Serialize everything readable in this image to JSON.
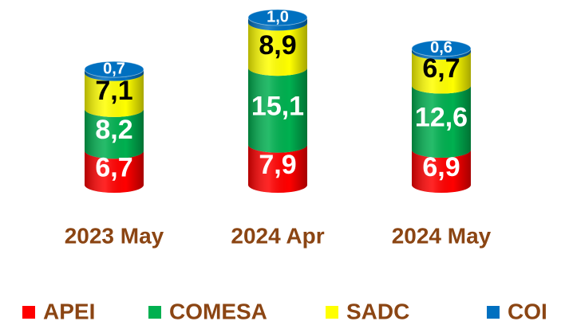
{
  "chart_data": {
    "type": "stacked_cylinder",
    "categories": [
      "2023 May",
      "2024 Apr",
      "2024 May"
    ],
    "series": [
      {
        "name": "APEI",
        "color": "#ff0000",
        "values": [
          6.7,
          7.9,
          6.9
        ],
        "value_labels": [
          "6,7",
          "7,9",
          "6,9"
        ]
      },
      {
        "name": "COMESA",
        "color": "#00b050",
        "values": [
          8.2,
          15.1,
          12.6
        ],
        "value_labels": [
          "8,2",
          "15,1",
          "12,6"
        ]
      },
      {
        "name": "SADC",
        "color": "#ffff00",
        "values": [
          7.1,
          8.9,
          6.7
        ],
        "value_labels": [
          "7,1",
          "8,9",
          "6,7"
        ]
      },
      {
        "name": "COI",
        "color": "#0070c0",
        "values": [
          0.7,
          1.0,
          0.6
        ],
        "value_labels": [
          "0,7",
          "1,0",
          "0,6"
        ]
      }
    ],
    "legend": "bottom"
  }
}
